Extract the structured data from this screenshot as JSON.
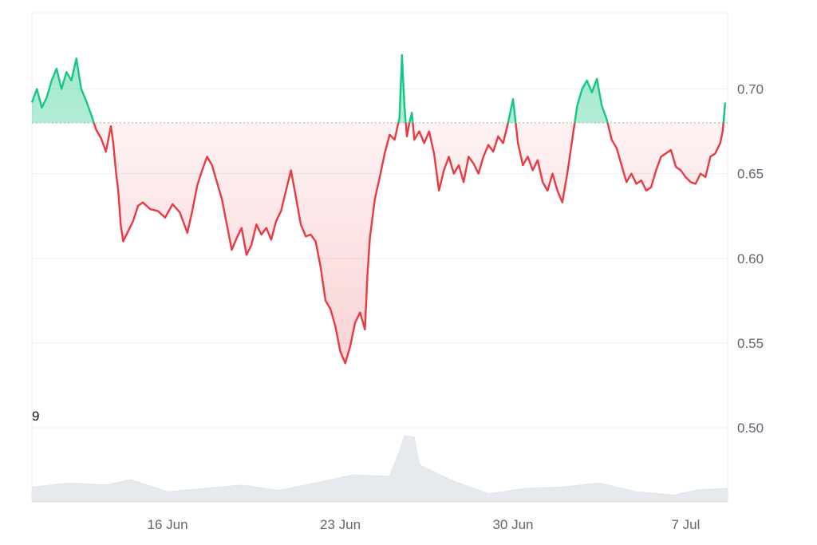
{
  "chart_data": {
    "type": "area",
    "title": "",
    "xlabel": "",
    "ylabel": "",
    "baseline": 0.68,
    "ylim": [
      0.5,
      0.745
    ],
    "xlim": [
      0.5,
      28.7
    ],
    "y_ticks": [
      0.5,
      0.55,
      0.6,
      0.65,
      0.7
    ],
    "y_tick_labels": [
      "0.50",
      "0.55",
      "0.60",
      "0.65",
      "0.70"
    ],
    "x_ticks": [
      {
        "day": 6,
        "label": "16 Jun"
      },
      {
        "day": 13,
        "label": "23 Jun"
      },
      {
        "day": 20,
        "label": "30 Jun"
      },
      {
        "day": 27,
        "label": "7 Jul"
      }
    ],
    "corner_label": "9",
    "grid": true,
    "legend": "none",
    "colors": {
      "above": "#16c784",
      "below": "#ea3943",
      "volume": "#e6e9ed",
      "grid": "#eceef1",
      "baseline": "#b0b3b8"
    },
    "x_unit": "day (Jun 11 = day 1)",
    "series": [
      {
        "values": [
          [
            0.5,
            0.692
          ],
          [
            0.7,
            0.7
          ],
          [
            0.9,
            0.689
          ],
          [
            1.1,
            0.695
          ],
          [
            1.3,
            0.705
          ],
          [
            1.5,
            0.712
          ],
          [
            1.7,
            0.7
          ],
          [
            1.9,
            0.71
          ],
          [
            2.1,
            0.705
          ],
          [
            2.3,
            0.718
          ],
          [
            2.5,
            0.7
          ],
          [
            2.7,
            0.693
          ],
          [
            2.9,
            0.685
          ],
          [
            3.1,
            0.676
          ],
          [
            3.3,
            0.671
          ],
          [
            3.5,
            0.663
          ],
          [
            3.7,
            0.678
          ],
          [
            3.8,
            0.668
          ],
          [
            3.9,
            0.652
          ],
          [
            4.0,
            0.64
          ],
          [
            4.1,
            0.62
          ],
          [
            4.2,
            0.61
          ],
          [
            4.4,
            0.616
          ],
          [
            4.6,
            0.622
          ],
          [
            4.8,
            0.631
          ],
          [
            5.0,
            0.633
          ],
          [
            5.3,
            0.629
          ],
          [
            5.6,
            0.628
          ],
          [
            5.9,
            0.624
          ],
          [
            6.2,
            0.632
          ],
          [
            6.5,
            0.627
          ],
          [
            6.8,
            0.615
          ],
          [
            7.0,
            0.628
          ],
          [
            7.2,
            0.643
          ],
          [
            7.4,
            0.652
          ],
          [
            7.6,
            0.66
          ],
          [
            7.8,
            0.655
          ],
          [
            8.0,
            0.645
          ],
          [
            8.2,
            0.635
          ],
          [
            8.4,
            0.62
          ],
          [
            8.6,
            0.605
          ],
          [
            8.8,
            0.612
          ],
          [
            9.0,
            0.618
          ],
          [
            9.2,
            0.602
          ],
          [
            9.4,
            0.608
          ],
          [
            9.6,
            0.62
          ],
          [
            9.8,
            0.614
          ],
          [
            10.0,
            0.618
          ],
          [
            10.2,
            0.611
          ],
          [
            10.4,
            0.622
          ],
          [
            10.6,
            0.628
          ],
          [
            10.8,
            0.64
          ],
          [
            11.0,
            0.652
          ],
          [
            11.2,
            0.636
          ],
          [
            11.4,
            0.62
          ],
          [
            11.6,
            0.613
          ],
          [
            11.8,
            0.614
          ],
          [
            12.0,
            0.61
          ],
          [
            12.2,
            0.595
          ],
          [
            12.4,
            0.575
          ],
          [
            12.6,
            0.57
          ],
          [
            12.8,
            0.56
          ],
          [
            13.0,
            0.545
          ],
          [
            13.2,
            0.538
          ],
          [
            13.4,
            0.548
          ],
          [
            13.6,
            0.562
          ],
          [
            13.8,
            0.568
          ],
          [
            14.0,
            0.558
          ],
          [
            14.1,
            0.59
          ],
          [
            14.2,
            0.612
          ],
          [
            14.4,
            0.635
          ],
          [
            14.6,
            0.648
          ],
          [
            14.8,
            0.662
          ],
          [
            15.0,
            0.673
          ],
          [
            15.2,
            0.67
          ],
          [
            15.4,
            0.683
          ],
          [
            15.5,
            0.72
          ],
          [
            15.6,
            0.69
          ],
          [
            15.7,
            0.672
          ],
          [
            15.8,
            0.68
          ],
          [
            15.9,
            0.686
          ],
          [
            16.0,
            0.67
          ],
          [
            16.2,
            0.675
          ],
          [
            16.4,
            0.668
          ],
          [
            16.6,
            0.675
          ],
          [
            16.8,
            0.662
          ],
          [
            17.0,
            0.64
          ],
          [
            17.2,
            0.652
          ],
          [
            17.4,
            0.66
          ],
          [
            17.6,
            0.65
          ],
          [
            17.8,
            0.655
          ],
          [
            18.0,
            0.645
          ],
          [
            18.2,
            0.66
          ],
          [
            18.4,
            0.656
          ],
          [
            18.6,
            0.65
          ],
          [
            18.8,
            0.66
          ],
          [
            19.0,
            0.667
          ],
          [
            19.2,
            0.663
          ],
          [
            19.4,
            0.672
          ],
          [
            19.6,
            0.668
          ],
          [
            19.8,
            0.68
          ],
          [
            20.0,
            0.694
          ],
          [
            20.2,
            0.668
          ],
          [
            20.4,
            0.655
          ],
          [
            20.6,
            0.66
          ],
          [
            20.8,
            0.652
          ],
          [
            21.0,
            0.658
          ],
          [
            21.2,
            0.645
          ],
          [
            21.4,
            0.64
          ],
          [
            21.6,
            0.65
          ],
          [
            21.8,
            0.64
          ],
          [
            22.0,
            0.633
          ],
          [
            22.2,
            0.65
          ],
          [
            22.4,
            0.67
          ],
          [
            22.6,
            0.69
          ],
          [
            22.8,
            0.7
          ],
          [
            23.0,
            0.705
          ],
          [
            23.2,
            0.698
          ],
          [
            23.4,
            0.706
          ],
          [
            23.6,
            0.69
          ],
          [
            23.8,
            0.682
          ],
          [
            24.0,
            0.67
          ],
          [
            24.2,
            0.665
          ],
          [
            24.4,
            0.655
          ],
          [
            24.6,
            0.645
          ],
          [
            24.8,
            0.65
          ],
          [
            25.0,
            0.644
          ],
          [
            25.2,
            0.646
          ],
          [
            25.4,
            0.64
          ],
          [
            25.6,
            0.642
          ],
          [
            25.8,
            0.652
          ],
          [
            26.0,
            0.66
          ],
          [
            26.2,
            0.662
          ],
          [
            26.4,
            0.664
          ],
          [
            26.6,
            0.654
          ],
          [
            26.8,
            0.652
          ],
          [
            27.0,
            0.648
          ],
          [
            27.2,
            0.645
          ],
          [
            27.4,
            0.644
          ],
          [
            27.6,
            0.65
          ],
          [
            27.8,
            0.648
          ],
          [
            28.0,
            0.66
          ],
          [
            28.2,
            0.662
          ],
          [
            28.4,
            0.668
          ],
          [
            28.5,
            0.675
          ],
          [
            28.6,
            0.692
          ]
        ]
      },
      {
        "name": "",
        "role": "volume",
        "values": [
          [
            0.5,
            0.22
          ],
          [
            2.0,
            0.28
          ],
          [
            3.5,
            0.25
          ],
          [
            4.5,
            0.33
          ],
          [
            6.0,
            0.15
          ],
          [
            7.5,
            0.2
          ],
          [
            9.0,
            0.25
          ],
          [
            10.5,
            0.17
          ],
          [
            12.0,
            0.28
          ],
          [
            13.5,
            0.4
          ],
          [
            15.0,
            0.38
          ],
          [
            15.4,
            0.75
          ],
          [
            15.6,
            0.98
          ],
          [
            16.0,
            0.96
          ],
          [
            16.2,
            0.55
          ],
          [
            17.5,
            0.32
          ],
          [
            19.0,
            0.12
          ],
          [
            20.5,
            0.2
          ],
          [
            22.0,
            0.22
          ],
          [
            23.5,
            0.28
          ],
          [
            25.0,
            0.15
          ],
          [
            26.5,
            0.1
          ],
          [
            27.5,
            0.18
          ],
          [
            28.7,
            0.2
          ]
        ]
      }
    ]
  }
}
